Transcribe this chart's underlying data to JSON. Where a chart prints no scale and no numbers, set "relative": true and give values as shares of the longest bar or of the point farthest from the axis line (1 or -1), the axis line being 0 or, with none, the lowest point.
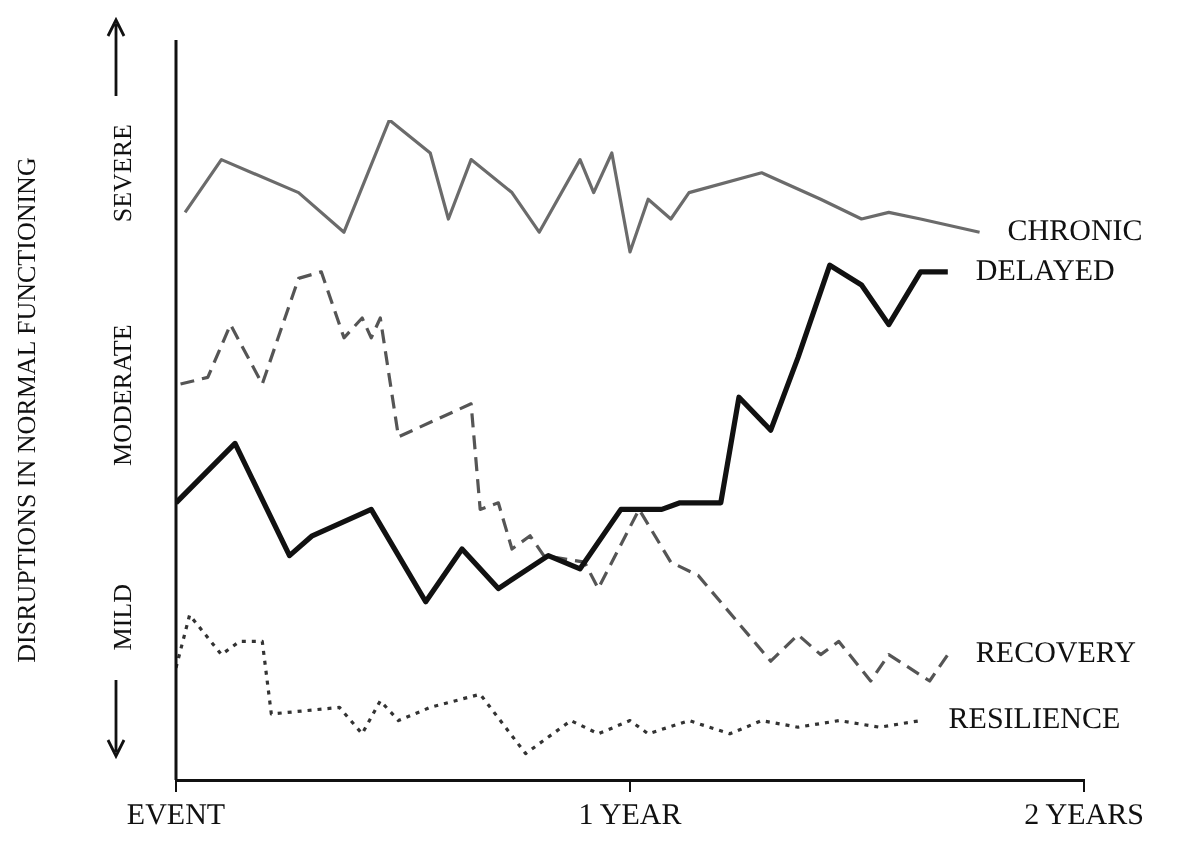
{
  "chart_data": {
    "type": "line",
    "relative": true,
    "ylabel": "DISRUPTIONS IN NORMAL FUNCTIONING",
    "annotations": [
      "MILD",
      "MODERATE",
      "SEVERE"
    ],
    "xlim": [
      0,
      2
    ],
    "xticks": [
      {
        "value": 0,
        "label": "EVENT"
      },
      {
        "value": 1,
        "label": "1 YEAR"
      },
      {
        "value": 2,
        "label": "2 YEARS"
      }
    ],
    "grid": false,
    "legend": false,
    "marker": "none",
    "series": [
      {
        "name": "CHRONIC",
        "color": "#6b6b6b",
        "line_style": "solid",
        "x": [
          0.02,
          0.1,
          0.27,
          0.37,
          0.47,
          0.56,
          0.6,
          0.65,
          0.74,
          0.8,
          0.89,
          0.92,
          0.96,
          1.0,
          1.04,
          1.09,
          1.13,
          1.29,
          1.42,
          1.51,
          1.57,
          1.64,
          1.77
        ],
        "values": [
          0.86,
          0.94,
          0.89,
          0.83,
          1,
          0.95,
          0.85,
          0.94,
          0.89,
          0.83,
          0.94,
          0.89,
          0.95,
          0.8,
          0.88,
          0.85,
          0.89,
          0.92,
          0.88,
          0.85,
          0.86,
          0.85,
          0.83
        ]
      },
      {
        "name": "DELAYED",
        "color": "#111111",
        "line_style": "solid",
        "x": [
          0,
          0.13,
          0.25,
          0.3,
          0.43,
          0.55,
          0.63,
          0.71,
          0.82,
          0.89,
          0.98,
          1.07,
          1.11,
          1.15,
          1.2,
          1.24,
          1.31,
          1.37,
          1.44,
          1.51,
          1.57,
          1.64,
          1.7
        ],
        "values": [
          0.42,
          0.51,
          0.34,
          0.37,
          0.41,
          0.27,
          0.35,
          0.29,
          0.34,
          0.32,
          0.41,
          0.41,
          0.42,
          0.42,
          0.42,
          0.58,
          0.53,
          0.64,
          0.78,
          0.75,
          0.69,
          0.77,
          0.77
        ]
      },
      {
        "name": "RECOVERY",
        "color": "#555555",
        "line_style": "dashed",
        "x": [
          0.01,
          0.07,
          0.12,
          0.19,
          0.27,
          0.32,
          0.37,
          0.41,
          0.43,
          0.45,
          0.49,
          0.65,
          0.67,
          0.71,
          0.74,
          0.78,
          0.81,
          0.9,
          0.93,
          1.02,
          1.09,
          1.15,
          1.31,
          1.37,
          1.42,
          1.46,
          1.53,
          1.57,
          1.66,
          1.7
        ],
        "values": [
          0.6,
          0.61,
          0.69,
          0.6,
          0.76,
          0.77,
          0.67,
          0.7,
          0.67,
          0.7,
          0.52,
          0.57,
          0.41,
          0.42,
          0.35,
          0.37,
          0.34,
          0.33,
          0.29,
          0.41,
          0.33,
          0.31,
          0.18,
          0.22,
          0.19,
          0.21,
          0.15,
          0.19,
          0.15,
          0.19
        ]
      },
      {
        "name": "RESILIENCE",
        "color": "#333333",
        "line_style": "dotted",
        "x": [
          0,
          0.03,
          0.1,
          0.14,
          0.19,
          0.21,
          0.36,
          0.41,
          0.45,
          0.49,
          0.56,
          0.67,
          0.77,
          0.87,
          0.93,
          1.0,
          1.04,
          1.13,
          1.22,
          1.29,
          1.37,
          1.46,
          1.55,
          1.64
        ],
        "values": [
          0.17,
          0.25,
          0.19,
          0.21,
          0.21,
          0.1,
          0.11,
          0.07,
          0.12,
          0.09,
          0.11,
          0.13,
          0.04,
          0.09,
          0.07,
          0.09,
          0.07,
          0.09,
          0.07,
          0.09,
          0.08,
          0.09,
          0.08,
          0.09
        ]
      }
    ]
  }
}
